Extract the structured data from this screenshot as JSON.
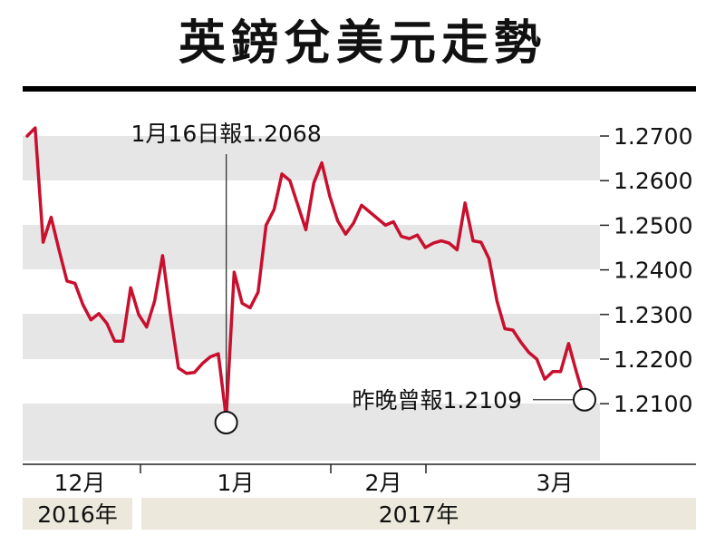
{
  "chart_data": {
    "type": "line",
    "title": "英鎊兌美元走勢",
    "y_ticks": [
      "1.2700",
      "1.2600",
      "1.2500",
      "1.2400",
      "1.2300",
      "1.2200",
      "1.2100"
    ],
    "ylim": [
      1.203,
      1.272
    ],
    "months": [
      {
        "label": "12月"
      },
      {
        "label": "1月"
      },
      {
        "label": "2月"
      },
      {
        "label": "3月"
      }
    ],
    "years": [
      {
        "label": "2016年"
      },
      {
        "label": "2017年"
      }
    ],
    "series": [
      {
        "color": "#c8102e",
        "values": [
          1.27,
          1.2718,
          1.2462,
          1.2518,
          1.2445,
          1.2375,
          1.237,
          1.2322,
          1.2288,
          1.2302,
          1.228,
          1.224,
          1.224,
          1.236,
          1.23,
          1.2272,
          1.233,
          1.2432,
          1.23,
          1.218,
          1.2168,
          1.217,
          1.219,
          1.2205,
          1.2212,
          1.2068,
          1.2395,
          1.2325,
          1.2315,
          1.235,
          1.25,
          1.2535,
          1.2615,
          1.26,
          1.2545,
          1.249,
          1.2595,
          1.264,
          1.2565,
          1.251,
          1.248,
          1.2505,
          1.2545,
          1.253,
          1.2515,
          1.25,
          1.2508,
          1.2475,
          1.247,
          1.2478,
          1.245,
          1.246,
          1.2465,
          1.246,
          1.2445,
          1.255,
          1.2465,
          1.2462,
          1.2425,
          1.233,
          1.2268,
          1.2265,
          1.2238,
          1.2215,
          1.22,
          1.2155,
          1.2172,
          1.2172,
          1.2235,
          1.217,
          1.2109
        ]
      }
    ],
    "annotations": [
      {
        "text": "1月16日報1.2068",
        "value": 1.2068
      },
      {
        "text": "昨晚曾報1.2109",
        "value": 1.2109
      }
    ]
  }
}
